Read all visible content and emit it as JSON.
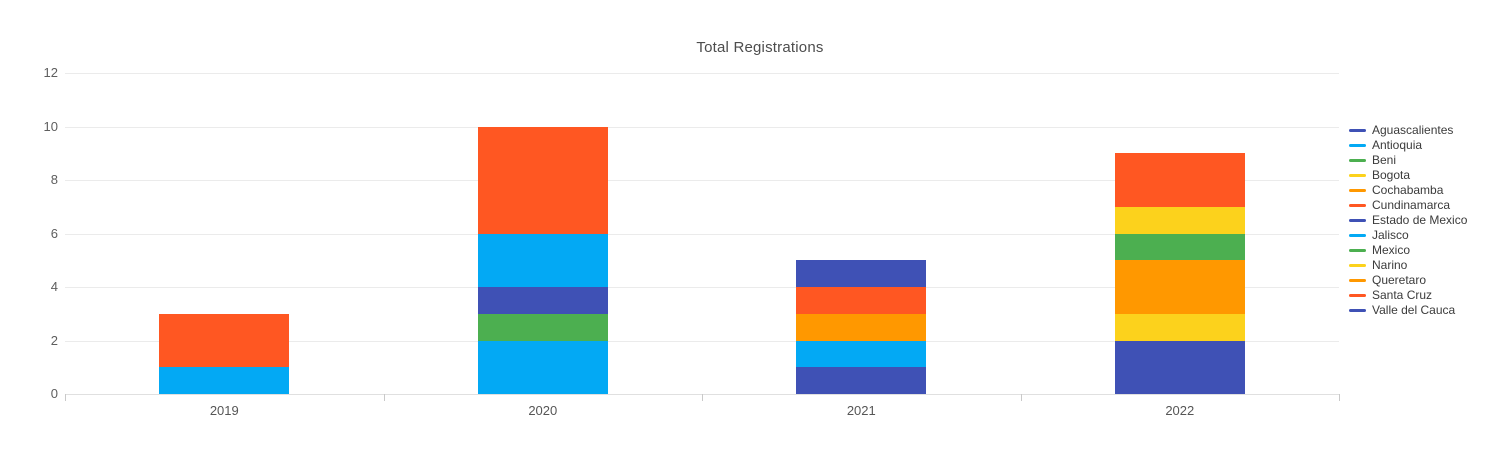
{
  "chart": {
    "title": "Total Registrations",
    "background_color": "#ffffff"
  },
  "chart_data": {
    "type": "bar",
    "stacked": true,
    "title": "Total Registrations",
    "xlabel": "",
    "ylabel": "",
    "categories": [
      "2019",
      "2020",
      "2021",
      "2022"
    ],
    "series": [
      {
        "name": "Aguascalientes",
        "color": "#3F51B5",
        "values": [
          0,
          0,
          1,
          2
        ]
      },
      {
        "name": "Antioquia",
        "color": "#03A9F4",
        "values": [
          1,
          2,
          0,
          0
        ]
      },
      {
        "name": "Beni",
        "color": "#4CAF50",
        "values": [
          0,
          1,
          0,
          0
        ]
      },
      {
        "name": "Bogota",
        "color": "#FCD21C",
        "values": [
          0,
          0,
          0,
          1
        ]
      },
      {
        "name": "Cochabamba",
        "color": "#FF9800",
        "values": [
          0,
          0,
          0,
          2
        ]
      },
      {
        "name": "Cundinamarca",
        "color": "#FF5722",
        "values": [
          2,
          0,
          0,
          0
        ]
      },
      {
        "name": "Estado de Mexico",
        "color": "#3F51B5",
        "values": [
          0,
          1,
          0,
          0
        ]
      },
      {
        "name": "Jalisco",
        "color": "#03A9F4",
        "values": [
          0,
          2,
          1,
          0
        ]
      },
      {
        "name": "Mexico",
        "color": "#4CAF50",
        "values": [
          0,
          0,
          0,
          1
        ]
      },
      {
        "name": "Narino",
        "color": "#FCD21C",
        "values": [
          0,
          0,
          0,
          1
        ]
      },
      {
        "name": "Queretaro",
        "color": "#FF9800",
        "values": [
          0,
          0,
          1,
          0
        ]
      },
      {
        "name": "Santa Cruz",
        "color": "#FF5722",
        "values": [
          0,
          4,
          1,
          2
        ]
      },
      {
        "name": "Valle del Cauca",
        "color": "#3F51B5",
        "values": [
          0,
          0,
          1,
          0
        ]
      }
    ],
    "totals_by_category": [
      3,
      10,
      5,
      9
    ],
    "ylim": [
      0,
      12
    ],
    "yticks": [
      0,
      2,
      4,
      6,
      8,
      10,
      12
    ],
    "grid": "horizontal",
    "legend_position": "right"
  }
}
